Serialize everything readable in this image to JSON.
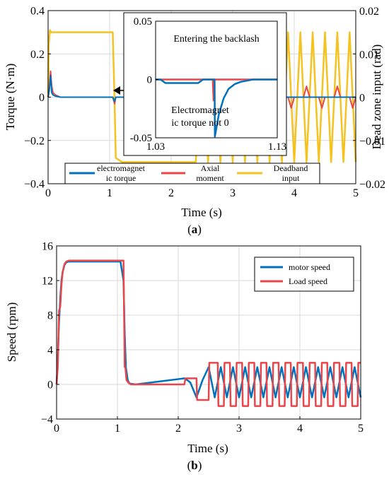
{
  "chart_data": [
    {
      "panel": "(a)",
      "type": "line",
      "xlabel": "Time (s)",
      "ylabel": "Torque (N·m)",
      "ylabel_right": "Dead zone input (rad)",
      "xlim": [
        0,
        5
      ],
      "ylim": [
        -0.4,
        0.4
      ],
      "ylim_right": [
        -0.02,
        0.02
      ],
      "xticks": [
        "0",
        "1",
        "2",
        "3",
        "4",
        "5"
      ],
      "yticks": [
        "0.4",
        "0.2",
        "0",
        "−0.2",
        "−0.4"
      ],
      "yticks_right": [
        "0.02",
        "0.01",
        "0",
        "−0.01",
        "−0.02"
      ],
      "grid": true,
      "legend_position": "bottom",
      "colors": {
        "electromagnetic": "#0072BD",
        "axial": "#E8464A",
        "deadband": "#F5C220"
      },
      "series": [
        {
          "name": "electromagnet ic torque",
          "axis": "left",
          "x": [
            0,
            0.02,
            0.04,
            0.06,
            0.08,
            0.12,
            0.2,
            1.05,
            1.08,
            1.1,
            1.2,
            5
          ],
          "y": [
            0,
            0.03,
            0.1,
            0.02,
            0.01,
            0.005,
            0,
            0,
            -0.02,
            0,
            0,
            0
          ]
        },
        {
          "name": "Axial moment",
          "axis": "left",
          "x": [
            0,
            0.02,
            0.04,
            0.06,
            0.08,
            0.12,
            0.2,
            1.05,
            1.08,
            1.1,
            1.2,
            2.4,
            2.45,
            2.5,
            2.65,
            2.7,
            2.75,
            2.9,
            2.95,
            3.0,
            3.15,
            3.2,
            3.25,
            3.4,
            3.45,
            3.5,
            3.65,
            3.7,
            3.75,
            3.9,
            3.95,
            4.0,
            4.15,
            4.2,
            4.25,
            4.4,
            4.45,
            4.5,
            4.65,
            4.7,
            4.75,
            4.9,
            4.95,
            5.0
          ],
          "y": [
            0,
            0.04,
            0.12,
            0.05,
            0.02,
            0.01,
            0,
            0,
            -0.03,
            0,
            0,
            0,
            -0.05,
            0,
            0,
            0.05,
            0,
            0,
            -0.05,
            0,
            0,
            0.05,
            0,
            0,
            -0.05,
            0,
            0,
            0.05,
            0,
            0,
            -0.05,
            0,
            0,
            0.05,
            0,
            0,
            -0.05,
            0,
            0,
            0.05,
            0,
            0,
            -0.05,
            0
          ]
        },
        {
          "name": "Deadband input",
          "axis": "right",
          "x": [
            0,
            0.01,
            0.03,
            0.05,
            1.03,
            1.05,
            1.08,
            1.1,
            1.2,
            2.4,
            2.5,
            2.6,
            2.7,
            2.8,
            2.9,
            3.0,
            3.1,
            3.2,
            3.3,
            3.4,
            3.5,
            3.6,
            3.7,
            3.8,
            3.9,
            4.0,
            4.1,
            4.2,
            4.3,
            4.4,
            4.5,
            4.6,
            4.7,
            4.8,
            4.9,
            5.0
          ],
          "y": [
            0,
            0.012,
            0.0155,
            0.015,
            0.015,
            0.015,
            -0.001,
            -0.014,
            -0.015,
            -0.015,
            0.015,
            -0.015,
            0.015,
            -0.015,
            0.015,
            -0.015,
            0.015,
            -0.015,
            0.015,
            -0.015,
            0.015,
            -0.015,
            0.015,
            -0.015,
            0.015,
            -0.015,
            0.015,
            -0.015,
            0.015,
            -0.015,
            0.015,
            -0.015,
            0.015,
            -0.015,
            0.015,
            -0.015
          ]
        }
      ],
      "inset": {
        "xlim": [
          1.03,
          1.13
        ],
        "ylim": [
          -0.05,
          0.05
        ],
        "xticks": [
          "1.03",
          "1.13"
        ],
        "yticks": [
          "0.05",
          "0",
          "-0.05"
        ],
        "annotations": [
          "Entering the backlash",
          "Electromagnet",
          "ic torque not 0"
        ],
        "series": [
          {
            "name": "electromagnet ic torque",
            "x": [
              1.03,
              1.034,
              1.038,
              1.065,
              1.069,
              1.0785,
              1.0787,
              1.082,
              1.086,
              1.09,
              1.095,
              1.1,
              1.105,
              1.11,
              1.13
            ],
            "y": [
              0,
              0,
              -0.003,
              -0.003,
              0,
              0,
              -0.049,
              -0.03,
              -0.016,
              -0.008,
              -0.004,
              -0.002,
              -0.001,
              0,
              0
            ]
          },
          {
            "name": "Axial moment",
            "x": [
              1.03,
              1.077,
              1.0777,
              1.0779,
              1.0781,
              1.13
            ],
            "y": [
              0,
              0,
              -0.018,
              -0.018,
              0,
              0
            ]
          }
        ]
      }
    },
    {
      "panel": "(b)",
      "type": "line",
      "xlabel": "Time (s)",
      "ylabel": "Speed (rpm)",
      "xlim": [
        0,
        5
      ],
      "ylim": [
        -4,
        16
      ],
      "xticks": [
        "0",
        "1",
        "2",
        "3",
        "4",
        "5"
      ],
      "yticks": [
        "16",
        "12",
        "8",
        "4",
        "0",
        "−4"
      ],
      "grid": true,
      "legend_position": "top-right",
      "colors": {
        "motor": "#0072BD",
        "load": "#E8464A"
      },
      "series": [
        {
          "name": "motor speed",
          "x": [
            0,
            0.02,
            0.04,
            0.06,
            0.08,
            0.1,
            0.13,
            0.16,
            0.2,
            0.25,
            0.3,
            1.05,
            1.1,
            1.12,
            1.14,
            1.17,
            1.2,
            1.3,
            2.1,
            2.15,
            2.2,
            2.3,
            2.4,
            2.5,
            2.6,
            2.7,
            2.8,
            2.9,
            3.0,
            3.1,
            3.2,
            3.3,
            3.4,
            3.5,
            3.6,
            3.7,
            3.8,
            3.9,
            4.0,
            4.1,
            4.2,
            4.3,
            4.4,
            4.5,
            4.6,
            4.7,
            4.8,
            4.9,
            5.0
          ],
          "y": [
            0,
            3,
            7,
            10,
            12,
            13,
            13.8,
            14.1,
            14.2,
            14.2,
            14.2,
            14.2,
            12,
            6,
            2,
            0.5,
            0.1,
            0,
            0.7,
            0.5,
            0.2,
            -1.5,
            0.5,
            2,
            -1.5,
            2,
            -1.5,
            2,
            -1.5,
            2,
            -1.5,
            2,
            -1.5,
            2,
            -1.5,
            2,
            -1.5,
            2,
            -1.5,
            2,
            -1.5,
            2,
            -1.5,
            2,
            -1.5,
            2,
            -1.5,
            2,
            -1.5
          ]
        },
        {
          "name": "Load speed",
          "x": [
            0,
            0.02,
            0.04,
            0.06,
            0.08,
            0.1,
            0.13,
            0.16,
            0.2,
            0.25,
            0.3,
            1.08,
            1.1,
            1.12,
            1.13,
            1.15,
            1.18,
            1.22,
            1.3,
            2.1,
            2.12,
            2.2,
            2.3,
            2.31,
            2.4,
            2.5,
            2.51,
            2.6,
            2.65,
            2.66,
            2.75,
            2.76,
            2.85,
            2.86,
            2.95,
            2.96,
            3.05,
            3.06,
            3.15,
            3.16,
            3.25,
            3.26,
            3.35,
            3.36,
            3.45,
            3.46,
            3.55,
            3.56,
            3.65,
            3.66,
            3.75,
            3.76,
            3.85,
            3.86,
            3.95,
            3.96,
            4.05,
            4.06,
            4.15,
            4.16,
            4.25,
            4.26,
            4.35,
            4.36,
            4.45,
            4.46,
            4.55,
            4.56,
            4.65,
            4.66,
            4.75,
            4.76,
            4.85,
            4.86,
            4.95,
            4.96,
            5.0
          ],
          "y": [
            0,
            2,
            8.5,
            9,
            11.5,
            13,
            13.9,
            14.2,
            14.3,
            14.3,
            14.3,
            14.3,
            14.3,
            2,
            2,
            0.5,
            0.2,
            0,
            0,
            0,
            0.7,
            0.7,
            0.7,
            -1.8,
            -1.8,
            -1.8,
            2.5,
            2.5,
            2.5,
            -2.5,
            -2.5,
            2.5,
            2.5,
            -2.5,
            -2.5,
            2.5,
            2.5,
            -2.5,
            -2.5,
            2.5,
            2.5,
            -2.5,
            -2.5,
            2.5,
            2.5,
            -2.5,
            -2.5,
            2.5,
            2.5,
            -2.5,
            -2.5,
            2.5,
            2.5,
            -2.5,
            -2.5,
            2.5,
            2.5,
            -2.5,
            -2.5,
            2.5,
            2.5,
            -2.5,
            -2.5,
            2.5,
            2.5,
            -2.5,
            -2.5,
            2.5,
            2.5,
            -2.5,
            -2.5,
            2.5,
            2.5,
            -2.5,
            -2.5,
            2.5,
            2.5
          ]
        }
      ]
    }
  ]
}
